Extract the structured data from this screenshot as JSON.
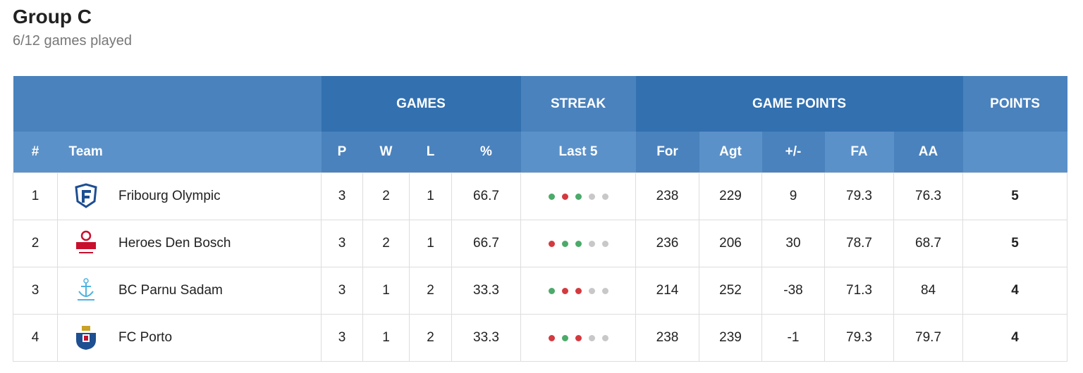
{
  "header": {
    "title": "Group C",
    "subtitle": "6/12 games played"
  },
  "table": {
    "groups": [
      "GAMES",
      "STREAK",
      "GAME POINTS",
      "POINTS"
    ],
    "columns": [
      "#",
      "Team",
      "P",
      "W",
      "L",
      "%",
      "Last 5",
      "For",
      "Agt",
      "+/-",
      "FA",
      "AA"
    ],
    "rows": [
      [
        1,
        "Fribourg Olympic",
        3,
        2,
        1,
        66.7,
        238,
        229,
        9,
        79.3,
        76.3,
        5
      ],
      [
        2,
        "Heroes Den Bosch",
        3,
        2,
        1,
        66.7,
        236,
        206,
        30,
        78.7,
        68.7,
        5
      ],
      [
        3,
        "BC Parnu Sadam",
        3,
        1,
        2,
        33.3,
        214,
        252,
        -38,
        71.3,
        84,
        4
      ],
      [
        4,
        "FC Porto",
        3,
        1,
        2,
        33.3,
        238,
        239,
        -1,
        79.3,
        79.7,
        4
      ]
    ]
  }
}
